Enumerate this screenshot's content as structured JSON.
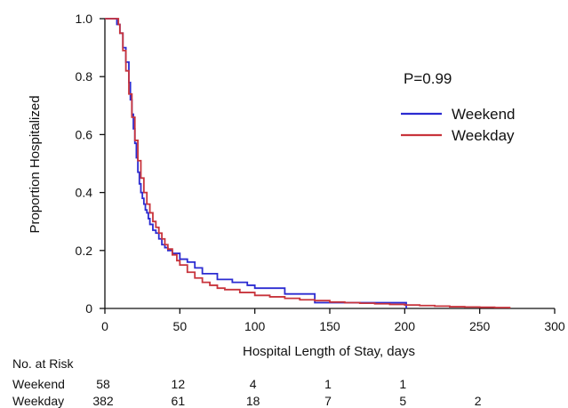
{
  "chart_data": {
    "type": "line",
    "xlabel": "Hospital Length of Stay, days",
    "ylabel": "Proportion Hospitalized",
    "xlim": [
      0,
      300
    ],
    "ylim": [
      0,
      1.0
    ],
    "xticks": [
      "0",
      "50",
      "100",
      "150",
      "200",
      "250",
      "300"
    ],
    "yticks": [
      "0",
      "0.2",
      "0.4",
      "0.6",
      "0.8",
      "1.0"
    ],
    "annotation": "P=0.99",
    "legend_position": "top-right",
    "grid": false,
    "series": [
      {
        "name": "Weekend",
        "color": "#2b2bd1",
        "x": [
          0,
          6,
          8,
          10,
          12,
          14,
          16,
          17,
          18,
          19,
          20,
          21,
          22,
          23,
          24,
          25,
          26,
          27,
          28,
          29,
          30,
          32,
          34,
          36,
          38,
          40,
          42,
          45,
          48,
          50,
          55,
          60,
          65,
          70,
          75,
          80,
          85,
          90,
          95,
          100,
          110,
          120,
          130,
          140,
          150,
          160,
          170,
          180,
          190,
          200,
          201
        ],
        "y": [
          1.0,
          1.0,
          0.98,
          0.95,
          0.9,
          0.85,
          0.78,
          0.72,
          0.67,
          0.62,
          0.57,
          0.52,
          0.47,
          0.43,
          0.4,
          0.38,
          0.36,
          0.34,
          0.33,
          0.31,
          0.29,
          0.27,
          0.26,
          0.24,
          0.22,
          0.21,
          0.2,
          0.19,
          0.19,
          0.17,
          0.16,
          0.14,
          0.12,
          0.12,
          0.1,
          0.1,
          0.09,
          0.09,
          0.08,
          0.07,
          0.07,
          0.05,
          0.05,
          0.02,
          0.02,
          0.02,
          0.02,
          0.02,
          0.02,
          0.02,
          0.0
        ]
      },
      {
        "name": "Weekday",
        "color": "#c8343c",
        "x": [
          0,
          8,
          9,
          10,
          12,
          14,
          16,
          18,
          20,
          22,
          24,
          26,
          28,
          30,
          32,
          34,
          36,
          38,
          40,
          42,
          45,
          48,
          50,
          55,
          60,
          65,
          70,
          75,
          80,
          90,
          100,
          110,
          120,
          130,
          140,
          150,
          160,
          170,
          180,
          190,
          200,
          210,
          220,
          230,
          240,
          250,
          260,
          270
        ],
        "y": [
          1.0,
          1.0,
          0.98,
          0.95,
          0.89,
          0.82,
          0.74,
          0.66,
          0.58,
          0.51,
          0.45,
          0.4,
          0.36,
          0.33,
          0.3,
          0.28,
          0.26,
          0.24,
          0.22,
          0.205,
          0.185,
          0.165,
          0.15,
          0.125,
          0.105,
          0.09,
          0.08,
          0.07,
          0.065,
          0.055,
          0.045,
          0.04,
          0.035,
          0.03,
          0.027,
          0.022,
          0.02,
          0.018,
          0.016,
          0.014,
          0.012,
          0.01,
          0.008,
          0.006,
          0.005,
          0.004,
          0.003,
          0.0
        ]
      }
    ]
  },
  "risk_table": {
    "title": "No. at Risk",
    "rows": [
      {
        "label": "Weekend",
        "values": [
          {
            "x": 0,
            "text": "58"
          },
          {
            "x": 50,
            "text": "12"
          },
          {
            "x": 100,
            "text": "4"
          },
          {
            "x": 150,
            "text": "1"
          },
          {
            "x": 200,
            "text": "1"
          }
        ]
      },
      {
        "label": "Weekday",
        "values": [
          {
            "x": 0,
            "text": "382"
          },
          {
            "x": 50,
            "text": "61"
          },
          {
            "x": 100,
            "text": "18"
          },
          {
            "x": 150,
            "text": "7"
          },
          {
            "x": 200,
            "text": "5"
          },
          {
            "x": 250,
            "text": "2"
          }
        ]
      }
    ]
  }
}
